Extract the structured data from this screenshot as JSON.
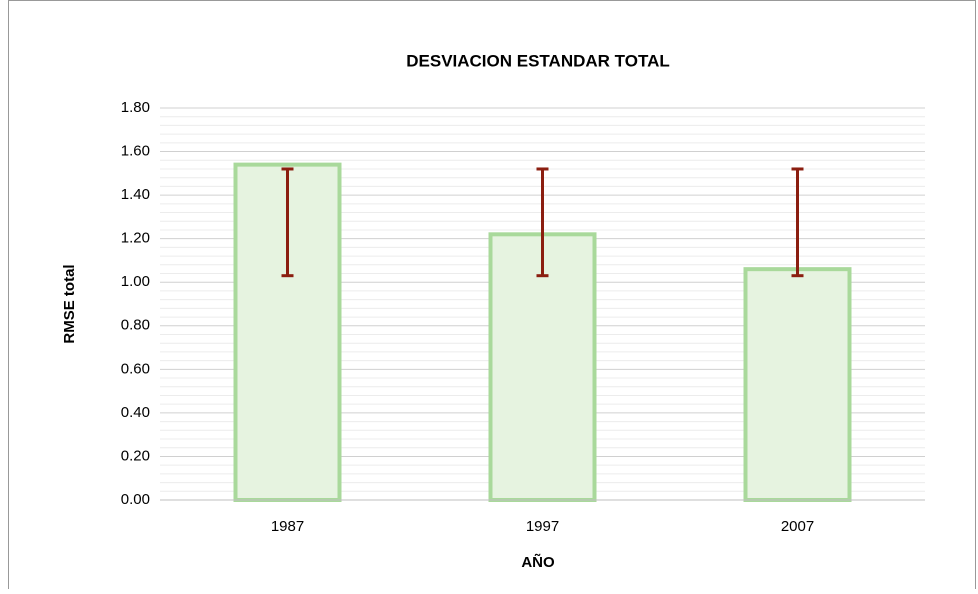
{
  "chart_data": {
    "type": "bar",
    "title": "DESVIACION ESTANDAR TOTAL",
    "x_label": "AÑO",
    "y_label": "RMSE  total",
    "categories": [
      "1987",
      "1997",
      "2007"
    ],
    "values": [
      1.54,
      1.22,
      1.06
    ],
    "error_low": [
      1.03,
      1.03,
      1.03
    ],
    "error_high": [
      1.52,
      1.52,
      1.52
    ],
    "color": "#e6f3e0",
    "edge_color": "#a9d99b",
    "error_color": "#8b1e10",
    "ylim": [
      0,
      1.8
    ],
    "yticks": [
      {
        "value": 0,
        "label": "0.00"
      },
      {
        "value": 0.2,
        "label": "0.20"
      },
      {
        "value": 0.4,
        "label": "0.40"
      },
      {
        "value": 0.6,
        "label": "0.60"
      },
      {
        "value": 0.8,
        "label": "0.80"
      },
      {
        "value": 1,
        "label": "1.00"
      },
      {
        "value": 1.2,
        "label": "1.20"
      },
      {
        "value": 1.4,
        "label": "1.40"
      },
      {
        "value": 1.6,
        "label": "1.60"
      },
      {
        "value": 1.8,
        "label": "1.80"
      }
    ],
    "grid": true,
    "minor_grid": true
  }
}
